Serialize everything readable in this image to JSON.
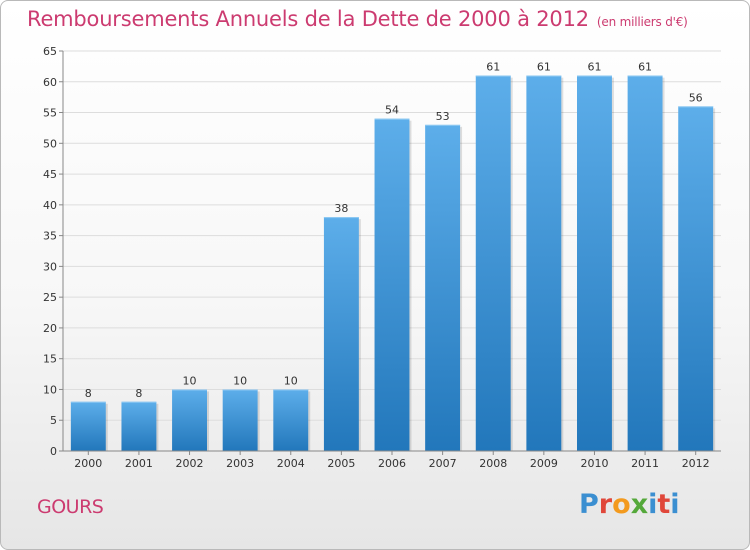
{
  "header": {
    "title": "Remboursements Annuels de la Dette de 2000 à 2012",
    "unit": "(en milliers d'€)"
  },
  "place": "GOURS",
  "logo": {
    "text": "Proxiti",
    "letter_colors": [
      "#3b8fd1",
      "#e0473a",
      "#f39a1e",
      "#54a83a",
      "#3b8fd1",
      "#e0473a",
      "#3b8fd1"
    ]
  },
  "chart_data": {
    "type": "bar",
    "title": "Remboursements Annuels de la Dette de 2000 à 2012",
    "xlabel": "",
    "ylabel": "",
    "categories": [
      "2000",
      "2001",
      "2002",
      "2003",
      "2004",
      "2005",
      "2006",
      "2007",
      "2008",
      "2009",
      "2010",
      "2011",
      "2012"
    ],
    "values": [
      8,
      8,
      10,
      10,
      10,
      38,
      54,
      53,
      61,
      61,
      61,
      61,
      56
    ],
    "data_labels": [
      "8",
      "8",
      "10",
      "10",
      "10",
      "38",
      "54",
      "53",
      "61",
      "61",
      "61",
      "61",
      "56"
    ],
    "ylim": [
      0,
      65
    ],
    "yticks": [
      0,
      5,
      10,
      15,
      20,
      25,
      30,
      35,
      40,
      45,
      50,
      55,
      60,
      65
    ],
    "grid": true,
    "colors": {
      "bar_top": "#5daeea",
      "bar_bottom": "#2277bb",
      "grid": "#dddddd",
      "axis_text": "#333333"
    }
  }
}
